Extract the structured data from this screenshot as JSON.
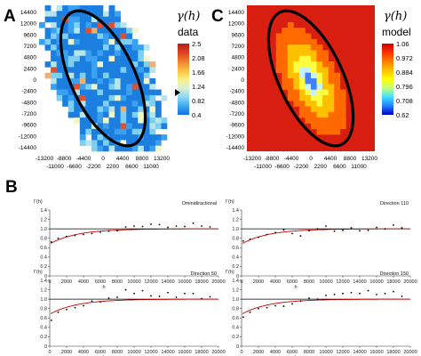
{
  "panels": {
    "A": {
      "letter": "A",
      "colorbar_symbol": "γ(h)",
      "colorbar_label": "data",
      "colorbar_ticks": [
        "2.5",
        "2.08",
        "1.66",
        "1.24",
        "0.82",
        "0.4"
      ]
    },
    "C": {
      "letter": "C",
      "colorbar_symbol": "γ(h)",
      "colorbar_label": "model",
      "colorbar_ticks": [
        "1.06",
        "0.972",
        "0.884",
        "0.796",
        "0.708",
        "0.62"
      ]
    },
    "B": {
      "letter": "B"
    }
  },
  "colors": {
    "data_map": [
      "#1c7fe0",
      "#3aa0f0",
      "#7dd0f0",
      "#b8e4ec",
      "#f2f6c8",
      "#f0b070",
      "#e05030"
    ],
    "model_map": [
      "#d81e10",
      "#ff6a00",
      "#ffc000",
      "#ffff40",
      "#c8f0ff",
      "#4080ff",
      "#0000c8"
    ],
    "colorbar_A": [
      "#b02020",
      "#e04020",
      "#f08030",
      "#f8c040",
      "#f8f080",
      "#d8f0d8",
      "#90d8f0",
      "#40a8f0",
      "#1070e0"
    ],
    "colorbar_C": [
      "#c80000",
      "#ff3000",
      "#ff8000",
      "#ffc000",
      "#ffff00",
      "#c0ff80",
      "#40e0ff",
      "#2080ff",
      "#0000c0"
    ],
    "model_line": "#cc0000",
    "sill_line": "#000000"
  },
  "chart_data": [
    {
      "id": "A",
      "type": "heatmap",
      "title": "",
      "colorbar_range": [
        0.4,
        2.5
      ],
      "xlim": [
        -13200,
        13200
      ],
      "ylim": [
        -14400,
        14400
      ],
      "x_tick_labels_row1": [
        "-13200",
        "-8800",
        "-4400",
        "0",
        "4400",
        "8800",
        "13200"
      ],
      "x_tick_labels_row2": [
        "-11000",
        "-6600",
        "-2200",
        "2200",
        "6600",
        "11000"
      ],
      "y_tick_labels": [
        "14400",
        "12000",
        "9600",
        "7200",
        "4800",
        "2400",
        "0",
        "-2400",
        "-4800",
        "-7200",
        "-9600",
        "-12000",
        "-14400"
      ]
    },
    {
      "id": "C",
      "type": "heatmap",
      "title": "",
      "colorbar_range": [
        0.62,
        1.06
      ],
      "xlim": [
        -13200,
        13200
      ],
      "ylim": [
        -14400,
        14400
      ],
      "x_tick_labels_row1": [
        "-13200",
        "-8800",
        "-4400",
        "0",
        "4400",
        "8800",
        "13200"
      ],
      "x_tick_labels_row2": [
        "-11000",
        "-6600",
        "-2200",
        "2200",
        "6600",
        "11000"
      ],
      "y_tick_labels": [
        "14400",
        "12000",
        "9600",
        "7200",
        "4800",
        "2400",
        "0",
        "-2400",
        "-4800",
        "-7200",
        "-9600",
        "-12000",
        "-14400"
      ]
    },
    {
      "id": "B1",
      "type": "scatter",
      "title": "Ominidiractional",
      "ylabel": "Γ(h)",
      "xlabel": "h",
      "xlim": [
        0,
        20000
      ],
      "ylim": [
        0,
        1.4
      ],
      "x_ticks": [
        "0",
        "2000",
        "4000",
        "6000",
        "8000",
        "10000",
        "12000",
        "14000",
        "16000",
        "18000",
        "20000"
      ],
      "y_ticks": [
        "1.4",
        "1.2",
        "1.0",
        "0.8",
        "0.6",
        "0.4",
        "0.2",
        "0"
      ],
      "x": [
        200,
        1000,
        2000,
        3000,
        4000,
        5000,
        6000,
        7000,
        8000,
        9000,
        10000,
        11000,
        12000,
        13000,
        14000,
        15000,
        16000,
        17000,
        18000,
        19000
      ],
      "y": [
        0.72,
        0.8,
        0.84,
        0.86,
        0.88,
        0.9,
        0.93,
        0.95,
        0.96,
        1.04,
        1.06,
        1.05,
        1.1,
        1.09,
        1.03,
        1.06,
        1.05,
        1.12,
        1.06,
        1.04
      ],
      "model_sill": 1.0
    },
    {
      "id": "B2",
      "type": "scatter",
      "title": "Direction 110",
      "ylabel": "Γ(h)",
      "xlabel": "h",
      "xlim": [
        0,
        20000
      ],
      "ylim": [
        0,
        1.4
      ],
      "x_ticks": [
        "0",
        "2000",
        "4000",
        "6000",
        "8000",
        "10000",
        "12000",
        "14000",
        "16000",
        "18000",
        "20000"
      ],
      "y_ticks": [
        "1.4",
        "1.2",
        "1.0",
        "0.8",
        "0.6",
        "0.4",
        "0.2",
        "0"
      ],
      "x": [
        200,
        1000,
        2000,
        3000,
        4000,
        5000,
        6000,
        7000,
        8000,
        9000,
        10000,
        11000,
        12000,
        13000,
        14000,
        15000,
        16000,
        17000,
        18000,
        19000
      ],
      "y": [
        0.74,
        0.78,
        0.82,
        0.88,
        0.92,
        0.98,
        0.9,
        0.85,
        0.96,
        1.0,
        1.06,
        0.95,
        0.97,
        1.02,
        0.96,
        0.97,
        1.03,
        1.0,
        1.08,
        1.02
      ],
      "model_sill": 1.0
    },
    {
      "id": "B3",
      "type": "scatter",
      "title": "Direction 50",
      "ylabel": "Γ(h)",
      "xlabel": "h",
      "xlim": [
        0,
        20000
      ],
      "ylim": [
        0,
        1.4
      ],
      "x_ticks": [
        "0",
        "2000",
        "4000",
        "6000",
        "8000",
        "10000",
        "12000",
        "14000",
        "16000",
        "18000",
        "20000"
      ],
      "y_ticks": [
        "1.4",
        "1.2",
        "1.0",
        "0.8",
        "0.6",
        "0.4",
        "0.2",
        "0"
      ],
      "x": [
        200,
        1000,
        2000,
        3000,
        4000,
        5000,
        6000,
        7000,
        8000,
        9000,
        10000,
        11000,
        12000,
        13000,
        14000,
        15000,
        16000,
        17000,
        18000,
        19000
      ],
      "y": [
        0.55,
        0.72,
        0.78,
        0.82,
        0.86,
        0.96,
        0.94,
        1.02,
        1.04,
        1.2,
        1.12,
        1.18,
        1.07,
        1.06,
        1.14,
        1.04,
        1.12,
        1.12,
        1.01,
        1.05
      ],
      "model_sill": 1.0
    },
    {
      "id": "B4",
      "type": "scatter",
      "title": "Direction 150",
      "ylabel": "Γ(h)",
      "xlabel": "h",
      "xlim": [
        0,
        20000
      ],
      "ylim": [
        0,
        1.4
      ],
      "x_ticks": [
        "0",
        "2000",
        "4000",
        "6000",
        "8000",
        "10000",
        "12000",
        "14000",
        "16000",
        "18000",
        "20000"
      ],
      "y_ticks": [
        "1.4",
        "1.2",
        "1.0",
        "0.8",
        "0.6",
        "0.4",
        "0.2",
        "0"
      ],
      "x": [
        200,
        1000,
        2000,
        3000,
        4000,
        5000,
        6000,
        7000,
        8000,
        9000,
        10000,
        11000,
        12000,
        13000,
        14000,
        15000,
        16000,
        17000,
        18000,
        19000
      ],
      "y": [
        0.62,
        0.72,
        0.8,
        0.82,
        0.86,
        0.85,
        0.9,
        0.96,
        1.02,
        1.0,
        1.08,
        1.1,
        1.12,
        1.14,
        1.12,
        1.18,
        1.1,
        1.12,
        1.16,
        1.06
      ],
      "model_sill": 1.0
    }
  ]
}
